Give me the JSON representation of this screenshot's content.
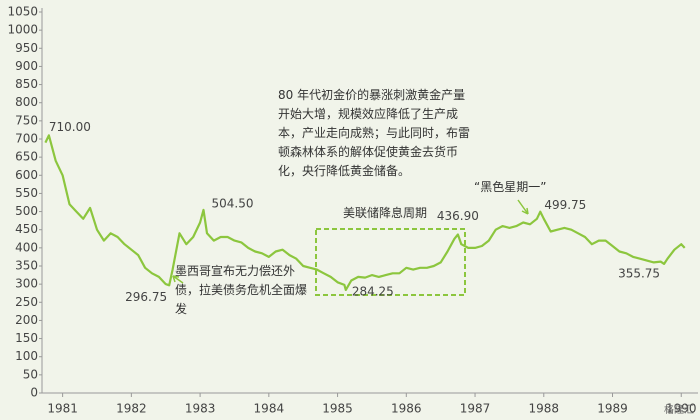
{
  "chart_data": {
    "type": "line",
    "x": [
      1980.75,
      1980.8,
      1980.9,
      1981.0,
      1981.1,
      1981.2,
      1981.3,
      1981.4,
      1981.5,
      1981.6,
      1981.7,
      1981.8,
      1981.9,
      1982.0,
      1982.1,
      1982.2,
      1982.3,
      1982.4,
      1982.5,
      1982.55,
      1982.6,
      1982.7,
      1982.8,
      1982.9,
      1983.0,
      1983.05,
      1983.1,
      1983.2,
      1983.3,
      1983.4,
      1983.5,
      1983.6,
      1983.7,
      1983.8,
      1983.9,
      1984.0,
      1984.1,
      1984.2,
      1984.3,
      1984.4,
      1984.5,
      1984.6,
      1984.7,
      1984.8,
      1984.9,
      1985.0,
      1985.1,
      1985.12,
      1985.2,
      1985.3,
      1985.4,
      1985.5,
      1985.6,
      1985.7,
      1985.8,
      1985.9,
      1986.0,
      1986.1,
      1986.2,
      1986.3,
      1986.4,
      1986.5,
      1986.6,
      1986.7,
      1986.75,
      1986.8,
      1986.9,
      1987.0,
      1987.1,
      1987.2,
      1987.3,
      1987.4,
      1987.5,
      1987.6,
      1987.7,
      1987.8,
      1987.9,
      1987.95,
      1988.0,
      1988.1,
      1988.2,
      1988.3,
      1988.4,
      1988.5,
      1988.6,
      1988.7,
      1988.8,
      1988.9,
      1989.0,
      1989.1,
      1989.2,
      1989.3,
      1989.4,
      1989.5,
      1989.6,
      1989.7,
      1989.75,
      1989.8,
      1989.9,
      1990.0,
      1990.05
    ],
    "series": [
      {
        "color": "#8cc63e",
        "values": [
          690,
          710,
          640,
          600,
          520,
          500,
          480,
          510,
          450,
          420,
          440,
          430,
          410,
          395,
          380,
          345,
          330,
          320,
          300,
          296.75,
          340,
          440,
          410,
          430,
          470,
          504.5,
          440,
          420,
          430,
          430,
          420,
          415,
          400,
          390,
          385,
          375,
          390,
          395,
          380,
          370,
          350,
          345,
          340,
          330,
          320,
          305,
          298,
          284.25,
          310,
          320,
          318,
          325,
          320,
          325,
          330,
          330,
          345,
          340,
          345,
          345,
          350,
          360,
          390,
          425,
          436.9,
          410,
          400,
          400,
          405,
          420,
          450,
          460,
          455,
          460,
          470,
          465,
          480,
          499.75,
          480,
          445,
          450,
          455,
          450,
          440,
          430,
          410,
          420,
          420,
          405,
          390,
          385,
          375,
          370,
          365,
          360,
          362,
          355.75,
          370,
          395,
          410,
          400
        ]
      }
    ],
    "xlim": [
      1980.7,
      1990.2
    ],
    "xticks": [
      1981,
      1982,
      1983,
      1984,
      1985,
      1986,
      1987,
      1988,
      1989,
      1990
    ],
    "ylim": [
      0,
      1050
    ],
    "yticks": [
      0,
      50,
      100,
      150,
      200,
      250,
      300,
      350,
      400,
      450,
      500,
      550,
      600,
      650,
      700,
      750,
      800,
      850,
      900,
      950,
      1000,
      1050
    ],
    "grid": false,
    "annotations": [
      {
        "x": 1980.8,
        "value": 710,
        "label": "710.00"
      },
      {
        "x": 1982.55,
        "value": 296.75,
        "label": "296.75"
      },
      {
        "x": 1983.05,
        "value": 504.5,
        "label": "504.50"
      },
      {
        "x": 1985.12,
        "value": 284.25,
        "label": "284.25"
      },
      {
        "x": 1986.75,
        "value": 436.9,
        "label": "436.90"
      },
      {
        "x": 1987.95,
        "value": 499.75,
        "label": "499.75"
      },
      {
        "x": 1989.75,
        "value": 355.75,
        "label": "355.75"
      }
    ],
    "notes": [
      "80 年代初金价的暴涨刺激黄金产量开始大增，规模效应降低了生产成本，产业走向成熟；与此同时，布雷顿森林体系的解体促使黄金去货币化，央行降低黄金储备。",
      "墨西哥宣布无力偿还外债，拉美债务危机全面爆发",
      "美联储降息周期",
      "“黑色星期一”"
    ],
    "watermark": "格隆汇"
  }
}
